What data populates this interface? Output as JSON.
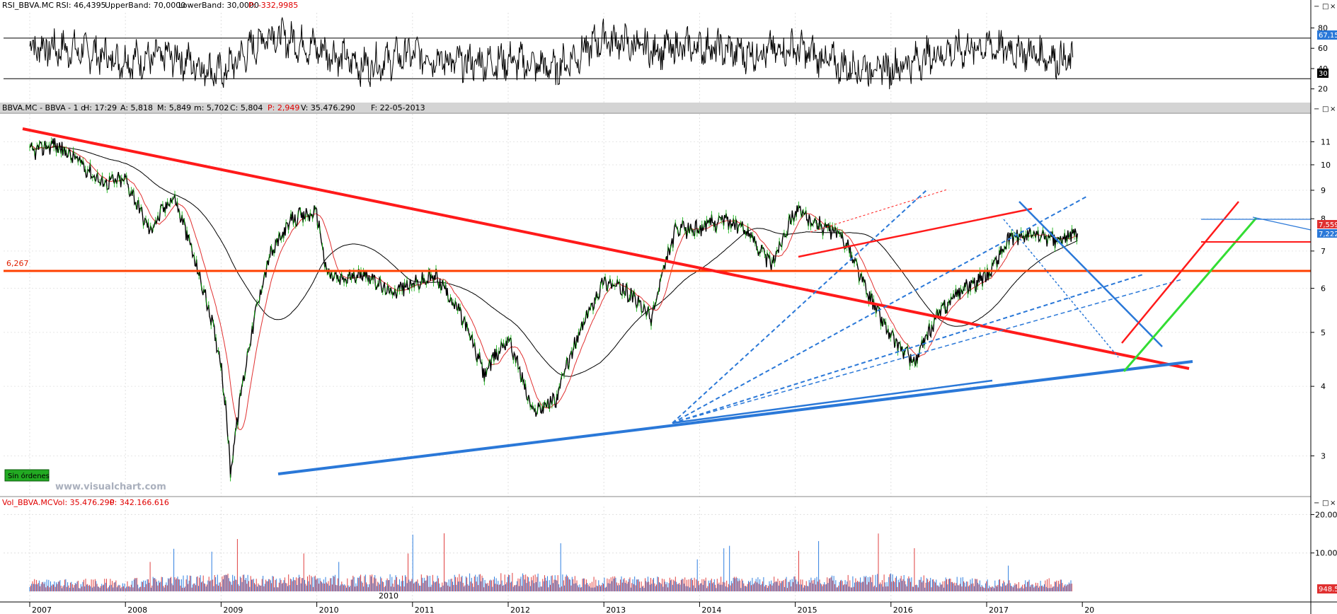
{
  "rsi_panel": {
    "header_name": "RSI_BBVA.MC",
    "header_rsi": "RSI: 46,4395",
    "header_upper": "UpperBand: 70,0000",
    "header_lower": "LowerBand: 30,0000",
    "header_p": "P: -332,9985",
    "y_ticks": [
      "80",
      "60",
      "40",
      "30",
      "20"
    ],
    "upper_band_value": "67,15",
    "lower_band_value": "30"
  },
  "price_panel": {
    "header_name": "BBVA.MC - BBVA - 1 d",
    "header_h": "H: 17:29",
    "header_a": "A: 5,818",
    "header_m": "M: 5,849",
    "header_low": "m: 5,702",
    "header_c": "C: 5,804",
    "header_p": "P: 2,949",
    "header_v": "V: 35.476.290",
    "header_f": "F: 22-05-2013",
    "y_ticks": [
      "11",
      "10",
      "9",
      "8",
      "7",
      "6",
      "5",
      "4",
      "3"
    ],
    "level_label": "6,267",
    "price_badge_1": "7,559",
    "price_badge_2": "7,222",
    "status_button": "Sin órdenes",
    "watermark": "www.visualchart.com"
  },
  "volume_panel": {
    "header_name": "Vol_BBVA.MC",
    "header_vol": "Vol: 35.476.290",
    "header_p": "P: 342.166.616",
    "y_ticks": [
      "20.000",
      "10.000"
    ],
    "last_value": "948.5"
  },
  "x_axis": {
    "years": [
      "2007",
      "2008",
      "2009",
      "2010",
      "2011",
      "2012",
      "2013",
      "2014",
      "2015",
      "2016",
      "2017",
      "20"
    ]
  },
  "colors": {
    "price_up": "#00aa00",
    "price_down": "#000000",
    "ma_fast": "#e03030",
    "ma_slow": "#000000",
    "trend_red": "#ff1a1a",
    "support_level": "#ff4000",
    "trend_blue": "#2a78d8",
    "trend_green": "#33dd33",
    "volume_blue": "#2f7fe0",
    "volume_red": "#e04040"
  },
  "chart_data": [
    {
      "type": "line",
      "title": "RSI_BBVA.MC",
      "ylim": [
        10,
        95
      ],
      "bands": {
        "upper": 70,
        "lower": 30
      },
      "x": [
        2007.0,
        2007.5,
        2008.0,
        2008.5,
        2009.0,
        2009.5,
        2010.0,
        2010.5,
        2011.0,
        2011.5,
        2012.0,
        2012.5,
        2013.0,
        2013.5,
        2014.0,
        2014.5,
        2015.0,
        2015.5,
        2016.0,
        2016.5,
        2017.0,
        2017.5,
        2017.9
      ],
      "values": [
        62,
        58,
        48,
        52,
        35,
        75,
        60,
        42,
        55,
        45,
        48,
        40,
        70,
        58,
        62,
        55,
        60,
        42,
        40,
        55,
        62,
        55,
        46
      ]
    },
    {
      "type": "line",
      "title": "BBVA.MC - BBVA - 1 d",
      "ylim": [
        2.55,
        12.2
      ],
      "x": [
        2007.0,
        2007.25,
        2007.5,
        2007.75,
        2008.0,
        2008.25,
        2008.5,
        2008.75,
        2009.0,
        2009.1,
        2009.25,
        2009.5,
        2009.75,
        2010.0,
        2010.1,
        2010.25,
        2010.5,
        2010.75,
        2011.0,
        2011.25,
        2011.5,
        2011.75,
        2012.0,
        2012.25,
        2012.5,
        2012.75,
        2013.0,
        2013.25,
        2013.5,
        2013.75,
        2014.0,
        2014.25,
        2014.5,
        2014.75,
        2015.0,
        2015.25,
        2015.5,
        2015.75,
        2016.0,
        2016.25,
        2016.5,
        2016.75,
        2017.0,
        2017.25,
        2017.5,
        2017.75,
        2017.95
      ],
      "values": [
        10.5,
        10.9,
        10.2,
        9.3,
        9.4,
        7.6,
        8.8,
        6.5,
        4.4,
        2.8,
        4.3,
        6.8,
        8.0,
        8.2,
        6.4,
        6.2,
        6.4,
        5.9,
        6.1,
        6.3,
        5.4,
        4.2,
        4.9,
        3.6,
        3.8,
        5.0,
        6.2,
        5.9,
        5.3,
        7.6,
        7.7,
        8.0,
        7.6,
        6.6,
        8.3,
        7.8,
        7.4,
        5.9,
        4.9,
        4.4,
        5.4,
        6.0,
        6.3,
        7.4,
        7.5,
        7.3,
        7.55
      ],
      "horizontal_line": 6.267,
      "annotations": "hand-drawn trendlines: red resistance from 2007 high to 2016, blue support from 2009 low to 2016, blue fan lines from 2012 low, red/green channel 2016-2017"
    },
    {
      "type": "bar",
      "title": "Vol_BBVA.MC",
      "ylim": [
        0,
        21000
      ],
      "x": [
        2007,
        2008,
        2009,
        2010,
        2011,
        2012,
        2013,
        2014,
        2015,
        2016,
        2017
      ],
      "values": [
        1800,
        1900,
        2600,
        2400,
        2500,
        2700,
        2300,
        2100,
        2200,
        2600,
        1900
      ]
    }
  ]
}
